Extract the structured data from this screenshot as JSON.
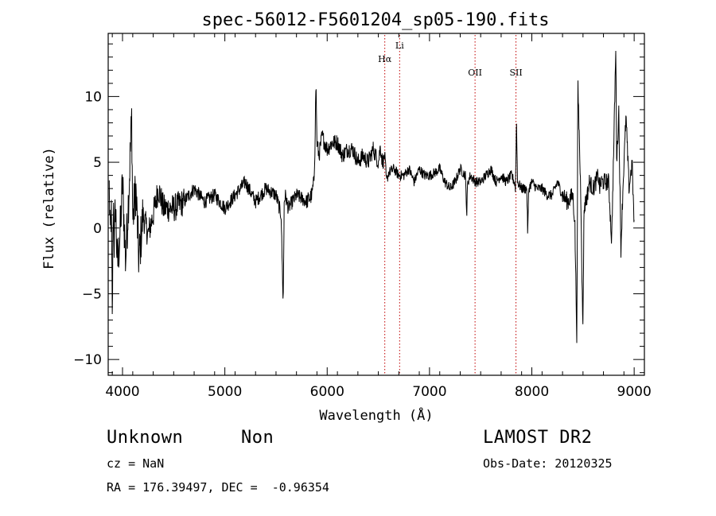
{
  "chart_data": {
    "type": "line",
    "title": "spec-56012-F5601204_sp05-190.fits",
    "xlabel": "Wavelength (Å)",
    "ylabel": "Flux (relative)",
    "xlim": [
      3860,
      9100
    ],
    "ylim": [
      -11.2,
      14.8
    ],
    "xticks": [
      4000,
      5000,
      6000,
      7000,
      8000,
      9000
    ],
    "yticks": [
      -10,
      -5,
      0,
      5,
      10
    ],
    "grid": false,
    "series": [
      {
        "x": [
          3870,
          3880,
          3890,
          3900,
          3910,
          3920,
          3930,
          3950,
          3980,
          4000,
          4030,
          4060,
          4090,
          4100,
          4130,
          4160,
          4200,
          4250,
          4300,
          4350,
          4400,
          4500,
          4600,
          4700,
          4800,
          4900,
          5000,
          5100,
          5200,
          5300,
          5400,
          5500,
          5550,
          5570,
          5575,
          5580,
          5590,
          5620,
          5700,
          5800,
          5850,
          5870,
          5880,
          5890,
          5900,
          5920,
          5950,
          6000,
          6050,
          6100,
          6150,
          6200,
          6250,
          6300,
          6350,
          6400,
          6450,
          6500,
          6520,
          6540,
          6563,
          6580,
          6600,
          6650,
          6700,
          6750,
          6800,
          6850,
          6900,
          6950,
          7000,
          7050,
          7100,
          7150,
          7200,
          7250,
          7300,
          7350,
          7365,
          7370,
          7375,
          7400,
          7450,
          7500,
          7550,
          7600,
          7650,
          7700,
          7750,
          7800,
          7830,
          7840,
          7850,
          7860,
          7900,
          7950,
          7960,
          7970,
          8000,
          8050,
          8100,
          8150,
          8200,
          8250,
          8300,
          8350,
          8400,
          8420,
          8440,
          8450,
          8480,
          8498,
          8510,
          8542,
          8560,
          8600,
          8650,
          8662,
          8680,
          8700,
          8750,
          8780,
          8800,
          8820,
          8830,
          8850,
          8870,
          8890,
          8920,
          8950,
          8980,
          9000
        ],
        "y": [
          3.0,
          -1.0,
          1.5,
          -7.5,
          2.5,
          -2.0,
          2.0,
          -3.0,
          0.0,
          3.5,
          -2.5,
          2.5,
          8.5,
          0.5,
          3.0,
          -2.5,
          1.0,
          -0.5,
          1.0,
          3.0,
          1.5,
          1.5,
          2.0,
          3.0,
          2.0,
          2.5,
          1.5,
          2.5,
          3.5,
          2.0,
          3.0,
          2.5,
          1.0,
          -5.8,
          -2.0,
          2.0,
          2.5,
          1.5,
          2.5,
          2.0,
          2.5,
          3.5,
          6.0,
          11.2,
          6.5,
          5.5,
          7.0,
          6.0,
          6.5,
          6.5,
          5.5,
          6.0,
          6.0,
          5.0,
          5.5,
          5.0,
          6.0,
          5.0,
          6.2,
          5.0,
          5.5,
          3.5,
          4.2,
          4.5,
          4.0,
          4.0,
          4.5,
          3.5,
          4.5,
          4.0,
          4.0,
          4.2,
          4.5,
          3.5,
          3.0,
          3.5,
          4.5,
          4.0,
          1.0,
          3.0,
          3.5,
          4.0,
          3.5,
          3.5,
          4.0,
          4.5,
          3.5,
          4.0,
          3.5,
          4.0,
          3.5,
          3.0,
          8.5,
          3.5,
          3.0,
          3.0,
          -0.5,
          3.0,
          3.5,
          3.0,
          3.0,
          2.5,
          2.5,
          3.5,
          2.5,
          2.0,
          2.5,
          0.5,
          -8.5,
          11.0,
          2.0,
          -8.0,
          1.5,
          2.5,
          3.5,
          3.0,
          4.0,
          3.0,
          3.5,
          3.5,
          3.5,
          -1.0,
          6.0,
          13.5,
          5.0,
          9.0,
          -1.8,
          3.0,
          8.5,
          3.0,
          5.0,
          0.0
        ]
      }
    ],
    "annotations": [
      {
        "label": "Hα",
        "x": 6563,
        "color": "#c00000"
      },
      {
        "label": "Li",
        "x": 6708,
        "color": "#c00000"
      },
      {
        "label": "OII",
        "x": 7445,
        "color": "#c00000"
      },
      {
        "label": "SII",
        "x": 7845,
        "color": "#c00000"
      }
    ]
  },
  "info": {
    "class_label": "Unknown",
    "subclass_label": "Non",
    "survey": "LAMOST DR2",
    "cz": "cz = NaN",
    "obs_date": "Obs-Date: 20120325",
    "radec": "RA = 176.39497, DEC =  -0.96354"
  }
}
